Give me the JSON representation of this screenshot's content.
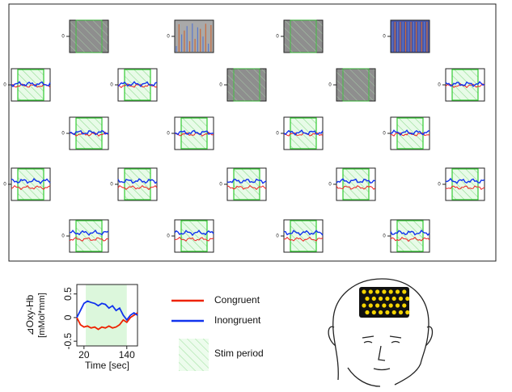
{
  "channel_tick_label": "0",
  "channel_rows": [
    [
      {
        "kind": "gray"
      },
      {
        "kind": "noisy"
      },
      {
        "kind": "gray"
      },
      {
        "kind": "saturated"
      }
    ],
    [
      {
        "kind": "ok"
      },
      {
        "kind": "ok"
      },
      {
        "kind": "gray"
      },
      {
        "kind": "gray"
      },
      {
        "kind": "ok"
      }
    ],
    [
      {
        "kind": "ok"
      },
      {
        "kind": "ok"
      },
      {
        "kind": "ok"
      },
      {
        "kind": "ok"
      }
    ],
    [
      {
        "kind": "ok"
      },
      {
        "kind": "ok"
      },
      {
        "kind": "ok"
      },
      {
        "kind": "ok"
      },
      {
        "kind": "ok"
      }
    ],
    [
      {
        "kind": "ok"
      },
      {
        "kind": "ok"
      },
      {
        "kind": "ok"
      },
      {
        "kind": "ok"
      }
    ]
  ],
  "chart_data": {
    "type": "line",
    "ylabel": "⊿Oxy-Hb",
    "ylabel_unit": "[mMol*mm]",
    "xlabel": "Time [sec]",
    "x": [
      0,
      10,
      20,
      30,
      40,
      50,
      60,
      70,
      80,
      90,
      100,
      110,
      120,
      130,
      140,
      150,
      160,
      170
    ],
    "xlim": [
      0,
      170
    ],
    "xticks": [
      20,
      140
    ],
    "ylim": [
      -0.6,
      0.7
    ],
    "yticks": [
      0.5,
      0,
      -0.5
    ],
    "stim_period": [
      25,
      140
    ],
    "stim_label": "Stim period",
    "stim_color": "#9be89b",
    "series": [
      {
        "name": "Congruent",
        "color": "#ee2200",
        "values": [
          0,
          -0.15,
          -0.2,
          -0.18,
          -0.22,
          -0.2,
          -0.25,
          -0.2,
          -0.22,
          -0.18,
          -0.22,
          -0.2,
          -0.15,
          -0.05,
          -0.1,
          0,
          0.05,
          0.1
        ]
      },
      {
        "name": "Inongruent",
        "color": "#1133ee",
        "values": [
          0,
          0.15,
          0.3,
          0.35,
          0.32,
          0.3,
          0.25,
          0.3,
          0.28,
          0.2,
          0.25,
          0.15,
          0.2,
          0.05,
          -0.05,
          0.05,
          0.1,
          0.05
        ]
      }
    ]
  }
}
